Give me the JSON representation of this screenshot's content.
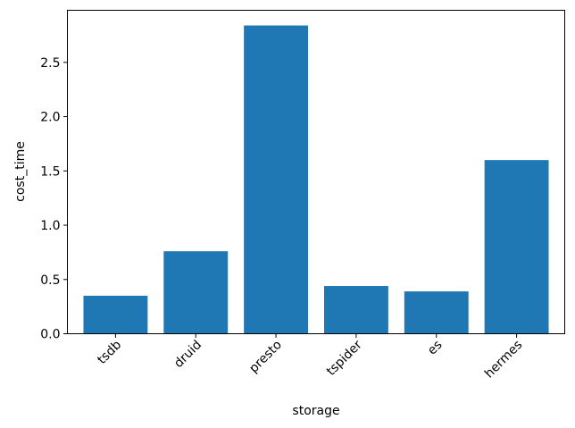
{
  "chart_data": {
    "type": "bar",
    "title": "",
    "xlabel": "storage",
    "ylabel": "cost_time",
    "categories": [
      "tsdb",
      "druid",
      "presto",
      "tspider",
      "es",
      "hermes"
    ],
    "values": [
      0.35,
      0.76,
      2.84,
      0.44,
      0.39,
      1.6
    ],
    "ylim": [
      0,
      2.98
    ],
    "yticks": [
      0.0,
      0.5,
      1.0,
      1.5,
      2.0,
      2.5
    ],
    "ytick_labels": [
      "0.0",
      "0.5",
      "1.0",
      "1.5",
      "2.0",
      "2.5"
    ],
    "xtick_rotation": 45,
    "grid": false,
    "legend": "none",
    "bar_color": "#1f77b4"
  }
}
